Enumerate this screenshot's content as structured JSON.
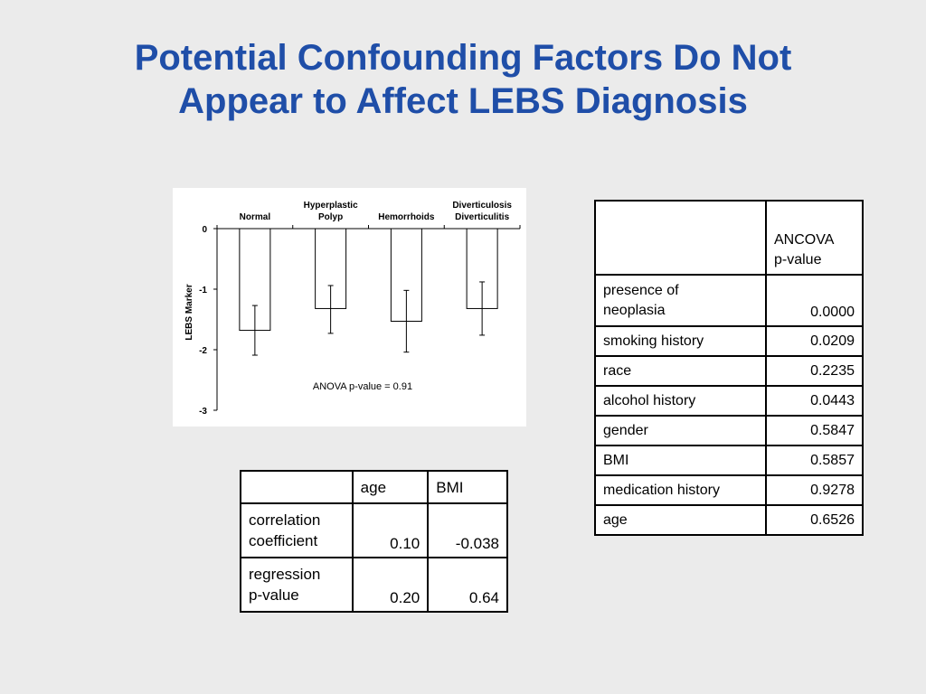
{
  "title": {
    "line1": "Potential Confounding Factors Do Not",
    "line2": "Appear to Affect LEBS Diagnosis"
  },
  "chart_data": {
    "type": "bar",
    "categories": [
      [
        "Normal"
      ],
      [
        "Hyperplastic",
        "Polyp"
      ],
      [
        "Hemorrhoids"
      ],
      [
        "Diverticulosis",
        "Diverticulitis"
      ]
    ],
    "values": [
      -1.68,
      -1.32,
      -1.53,
      -1.32
    ],
    "error_low": [
      -2.09,
      -1.73,
      -2.04,
      -1.76
    ],
    "error_high": [
      -1.27,
      -0.94,
      -1.02,
      -0.88
    ],
    "ylabel": "LEBS Marker",
    "ylim": [
      -3,
      0
    ],
    "yticks": [
      0,
      -1,
      -2,
      -3
    ],
    "annotation": "ANOVA p-value = 0.91",
    "colors": {
      "bar_fill": "#ffffff",
      "bar_stroke": "#000000"
    }
  },
  "ancova_table": {
    "header": [
      "",
      "ANCOVA\np-value"
    ],
    "rows": [
      {
        "label": "presence of\nneoplasia",
        "value": "0.0000"
      },
      {
        "label": "smoking history",
        "value": "0.0209"
      },
      {
        "label": "race",
        "value": "0.2235"
      },
      {
        "label": "alcohol history",
        "value": "0.0443"
      },
      {
        "label": "gender",
        "value": "0.5847"
      },
      {
        "label": "BMI",
        "value": "0.5857"
      },
      {
        "label": "medication history",
        "value": "0.9278"
      },
      {
        "label": "age",
        "value": "0.6526"
      }
    ]
  },
  "correlation_table": {
    "header": [
      "",
      "age",
      "BMI"
    ],
    "rows": [
      {
        "label": "correlation\ncoefficient",
        "age": "0.10",
        "bmi": "-0.038"
      },
      {
        "label": "regression\np-value",
        "age": "0.20",
        "bmi": "0.64"
      }
    ]
  },
  "colors": {
    "title": "#1f4ea8",
    "background": "#ebebeb"
  }
}
